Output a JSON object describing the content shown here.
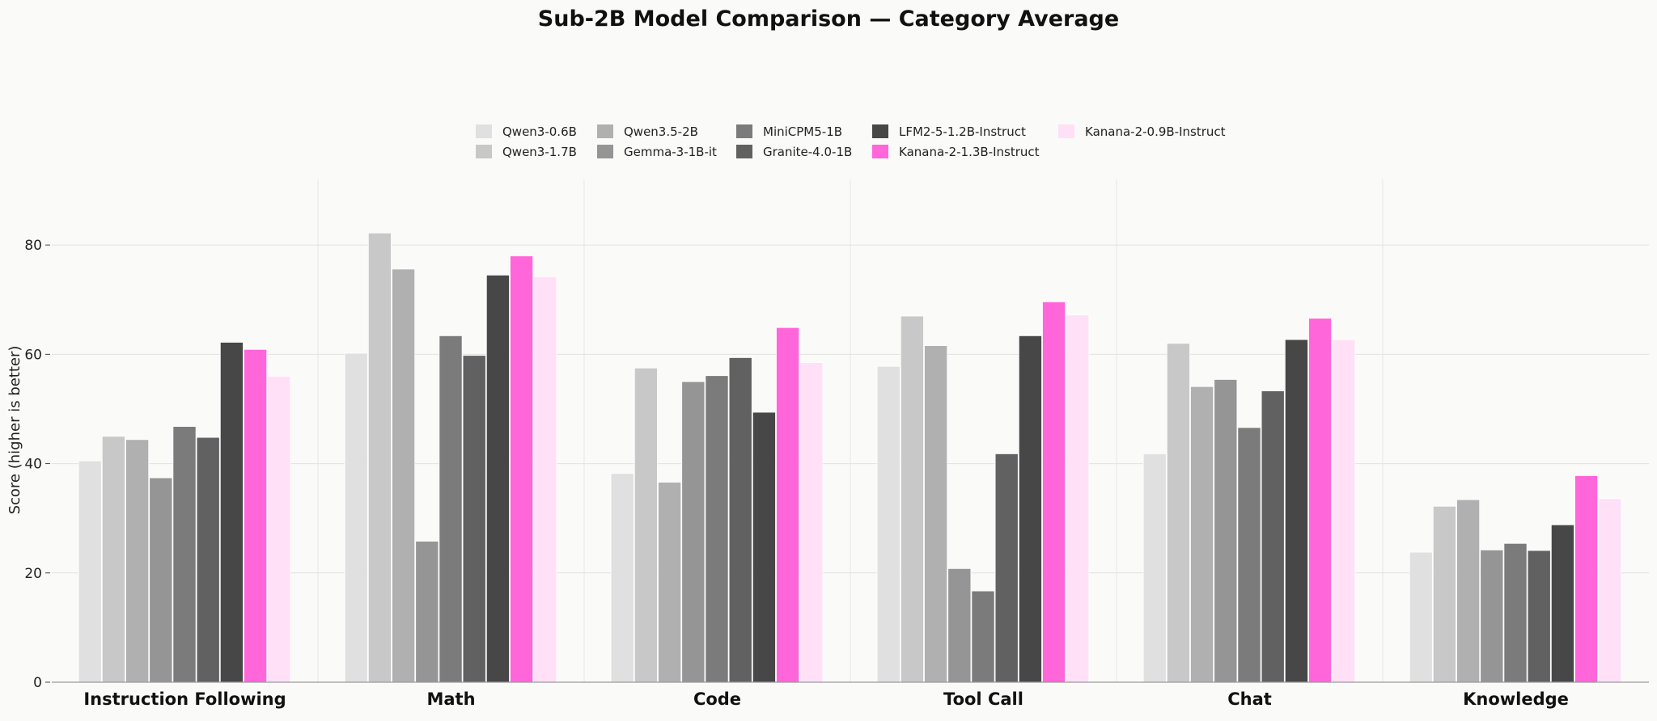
{
  "chart_data": {
    "type": "bar",
    "title": "Sub-2B Model Comparison — Category Average",
    "xlabel": "",
    "ylabel": "Score (higher is better)",
    "ylim": [
      0,
      92
    ],
    "yticks": [
      0,
      20,
      40,
      60,
      80
    ],
    "grid": true,
    "legend_position": "top-center",
    "categories": [
      "Instruction Following",
      "Math",
      "Code",
      "Tool Call",
      "Chat",
      "Knowledge"
    ],
    "series": [
      {
        "name": "Qwen3-0.6B",
        "color": "#e0e0e0",
        "values": [
          40.5,
          60.2,
          38.2,
          57.8,
          41.8,
          23.8
        ]
      },
      {
        "name": "Qwen3-1.7B",
        "color": "#c8c8c8",
        "values": [
          45.0,
          82.2,
          57.5,
          67.0,
          62.0,
          32.2
        ]
      },
      {
        "name": "Qwen3.5-2B",
        "color": "#b0b0b0",
        "values": [
          44.4,
          75.6,
          36.6,
          61.6,
          54.1,
          33.4
        ]
      },
      {
        "name": "Gemma-3-1B-it",
        "color": "#959595",
        "values": [
          37.4,
          25.8,
          55.0,
          20.8,
          55.4,
          24.2
        ]
      },
      {
        "name": "MiniCPM5-1B",
        "color": "#7b7b7b",
        "values": [
          46.8,
          63.4,
          56.1,
          16.7,
          46.6,
          25.4
        ]
      },
      {
        "name": "Granite-4.0-1B",
        "color": "#616161",
        "values": [
          44.8,
          59.8,
          59.4,
          41.8,
          53.3,
          24.1
        ]
      },
      {
        "name": "LFM2-5-1.2B-Instruct",
        "color": "#474747",
        "values": [
          62.2,
          74.5,
          49.4,
          63.4,
          62.7,
          28.8
        ]
      },
      {
        "name": "Kanana-2-1.3B-Instruct",
        "color": "#ff66d9",
        "values": [
          60.9,
          78.0,
          64.9,
          69.6,
          66.6,
          37.8
        ]
      },
      {
        "name": "Kanana-2-0.9B-Instruct",
        "color": "#ffe0f7",
        "values": [
          56.0,
          74.2,
          58.5,
          67.2,
          62.7,
          33.6
        ]
      }
    ]
  }
}
